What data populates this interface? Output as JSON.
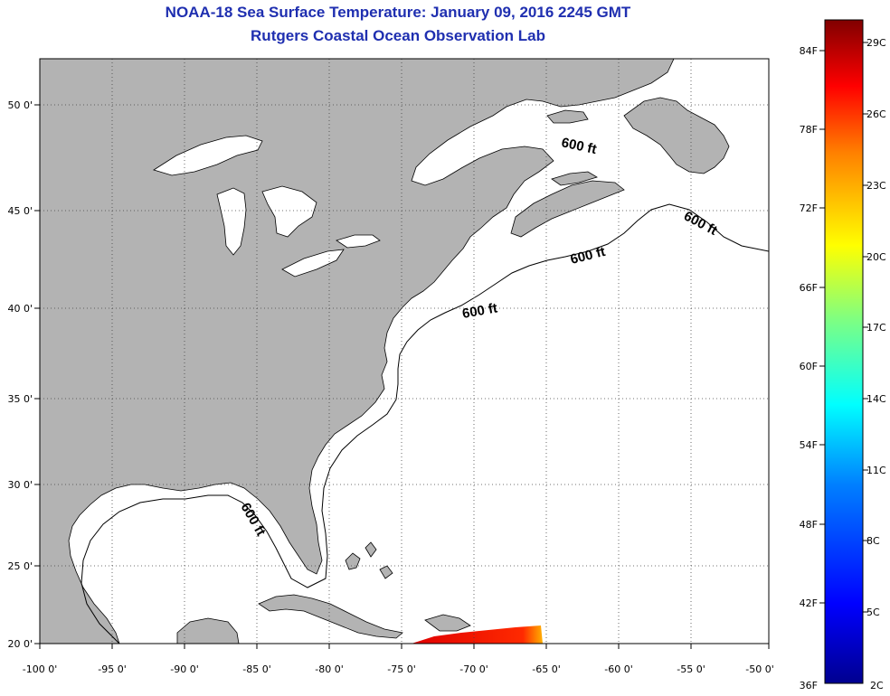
{
  "header": {
    "title": "NOAA-18 Sea Surface Temperature:  January 09, 2016 2245 GMT",
    "subtitle": "Rutgers Coastal Ocean Observation Lab"
  },
  "map": {
    "lon_ticks": [
      "-100 0'",
      "-95 0'",
      "-90 0'",
      "-85 0'",
      "-80 0'",
      "-75 0'",
      "-70 0'",
      "-65 0'",
      "-60 0'",
      "-55 0'",
      "-50 0'"
    ],
    "lat_ticks": [
      "50 0'",
      "45 0'",
      "40 0'",
      "35 0'",
      "30 0'",
      "25 0'",
      "20 0'"
    ],
    "contour_label": "600 ft",
    "land_color": "#b3b3b3",
    "ocean_color": "#ffffff"
  },
  "colorbar": {
    "f_labels": [
      "84F",
      "78F",
      "72F",
      "66F",
      "60F",
      "54F",
      "48F",
      "42F",
      "36F"
    ],
    "c_labels": [
      "29C",
      "26C",
      "23C",
      "20C",
      "17C",
      "14C",
      "11C",
      "8C",
      "5C",
      "2C"
    ],
    "colors": [
      "#00008f",
      "#0000ff",
      "#0080ff",
      "#00ffff",
      "#80ff80",
      "#ffff00",
      "#ff8000",
      "#ff0000",
      "#800000"
    ]
  }
}
